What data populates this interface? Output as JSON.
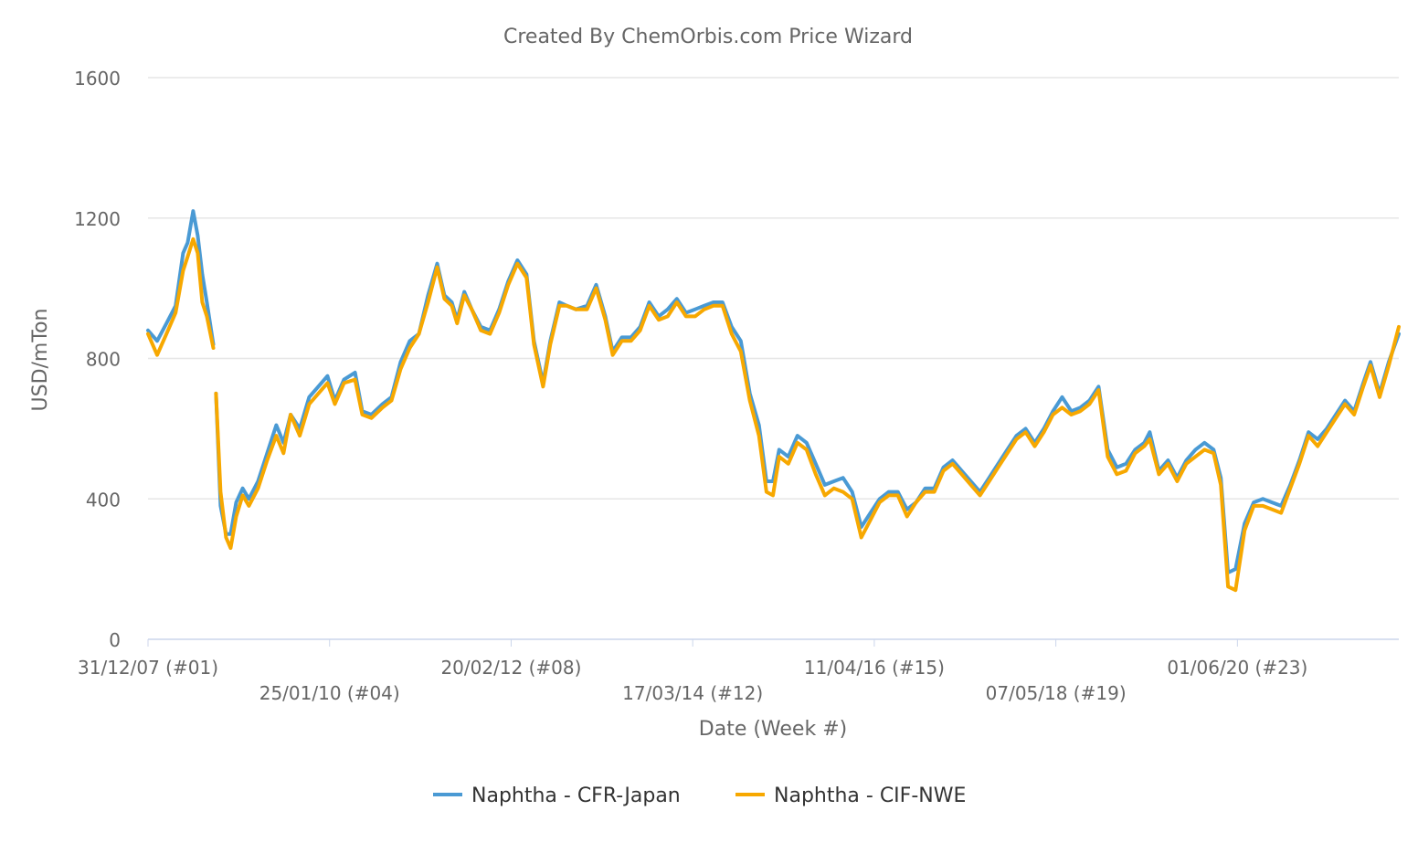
{
  "chart_data": {
    "type": "line",
    "title": "Created By ChemOrbis.com Price Wizard",
    "xlabel": "Date (Week #)",
    "ylabel": "USD/mTon",
    "ylim": [
      0,
      1600
    ],
    "yticks": [
      0,
      400,
      800,
      1200,
      1600
    ],
    "xlim": [
      "2007-12-31",
      "2022-04-04"
    ],
    "xticks": [
      {
        "date": "2007-12-31",
        "label": "31/12/07 (#01)"
      },
      {
        "date": "2010-01-25",
        "label": "25/01/10 (#04)"
      },
      {
        "date": "2012-02-20",
        "label": "20/02/12 (#08)"
      },
      {
        "date": "2014-03-17",
        "label": "17/03/14 (#12)"
      },
      {
        "date": "2016-04-11",
        "label": "11/04/16 (#15)"
      },
      {
        "date": "2018-05-07",
        "label": "07/05/18 (#19)"
      },
      {
        "date": "2020-06-01",
        "label": "01/06/20 (#23)"
      }
    ],
    "grid": true,
    "legend_position": "bottom",
    "x": [
      "2007-12-31",
      "2008-02-07",
      "2008-03-17",
      "2008-04-24",
      "2008-05-25",
      "2008-06-13",
      "2008-07-06",
      "2008-07-25",
      "2008-08-13",
      "2008-09-01",
      "2008-09-28",
      "2008-10-02",
      "2008-10-09",
      "2008-10-28",
      "2008-11-20",
      "2008-12-09",
      "2009-01-01",
      "2009-01-28",
      "2009-02-23",
      "2009-04-02",
      "2009-05-10",
      "2009-06-17",
      "2009-07-17",
      "2009-08-16",
      "2009-09-23",
      "2009-11-01",
      "2009-12-09",
      "2010-01-16",
      "2010-02-16",
      "2010-03-26",
      "2010-05-11",
      "2010-06-10",
      "2010-07-18",
      "2010-09-02",
      "2010-10-10",
      "2010-11-17",
      "2010-12-25",
      "2011-02-01",
      "2011-03-11",
      "2011-04-18",
      "2011-05-18",
      "2011-06-18",
      "2011-07-10",
      "2011-08-09",
      "2011-09-09",
      "2011-10-17",
      "2011-11-24",
      "2012-01-01",
      "2012-02-08",
      "2012-03-17",
      "2012-04-24",
      "2012-05-25",
      "2012-07-02",
      "2012-08-01",
      "2012-09-08",
      "2012-10-09",
      "2012-11-16",
      "2013-01-01",
      "2013-02-08",
      "2013-03-18",
      "2013-04-18",
      "2013-05-26",
      "2013-07-03",
      "2013-08-10",
      "2013-09-17",
      "2013-10-26",
      "2013-12-03",
      "2014-01-10",
      "2014-02-17",
      "2014-03-27",
      "2014-05-04",
      "2014-06-11",
      "2014-07-19",
      "2014-08-26",
      "2014-10-03",
      "2014-11-10",
      "2014-12-18",
      "2015-01-18",
      "2015-02-14",
      "2015-03-12",
      "2015-04-19",
      "2015-05-27",
      "2015-07-04",
      "2015-08-11",
      "2015-09-18",
      "2015-10-26",
      "2015-12-03",
      "2016-01-10",
      "2016-02-17",
      "2016-03-26",
      "2016-05-03",
      "2016-06-10",
      "2016-07-18",
      "2016-08-25",
      "2016-10-02",
      "2016-11-09",
      "2016-12-17",
      "2017-01-24",
      "2017-03-03",
      "2017-04-10",
      "2017-05-18",
      "2017-06-25",
      "2017-08-02",
      "2017-09-09",
      "2017-10-17",
      "2017-11-24",
      "2018-01-01",
      "2018-02-08",
      "2018-03-18",
      "2018-04-25",
      "2018-06-02",
      "2018-07-10",
      "2018-08-17",
      "2018-09-24",
      "2018-11-01",
      "2018-12-09",
      "2019-01-16",
      "2019-02-23",
      "2019-04-02",
      "2019-05-10",
      "2019-06-02",
      "2019-07-10",
      "2019-08-17",
      "2019-09-24",
      "2019-11-01",
      "2019-12-09",
      "2020-01-16",
      "2020-02-23",
      "2020-03-24",
      "2020-04-23",
      "2020-05-24",
      "2020-07-01",
      "2020-08-08",
      "2020-09-15",
      "2020-10-23",
      "2020-11-30",
      "2021-01-07",
      "2021-02-14",
      "2021-03-24",
      "2021-05-01",
      "2021-06-08",
      "2021-07-16",
      "2021-08-23",
      "2021-09-30",
      "2021-11-07",
      "2021-12-07",
      "2022-01-14",
      "2022-02-21",
      "2022-04-04"
    ],
    "series": [
      {
        "name": "Naphtha - CFR-Japan",
        "color": "#4a9ad4",
        "values": [
          880,
          850,
          900,
          950,
          1100,
          1130,
          1220,
          1150,
          1040,
          960,
          840,
          null,
          700,
          380,
          300,
          300,
          390,
          430,
          400,
          450,
          530,
          610,
          560,
          640,
          600,
          690,
          720,
          750,
          680,
          740,
          760,
          650,
          640,
          670,
          690,
          790,
          850,
          870,
          980,
          1070,
          980,
          960,
          910,
          990,
          940,
          890,
          880,
          940,
          1020,
          1080,
          1040,
          850,
          730,
          850,
          960,
          950,
          940,
          950,
          1010,
          920,
          820,
          860,
          860,
          890,
          960,
          920,
          940,
          970,
          930,
          940,
          950,
          960,
          960,
          890,
          850,
          700,
          610,
          450,
          450,
          540,
          520,
          580,
          560,
          500,
          440,
          450,
          460,
          420,
          320,
          360,
          400,
          420,
          420,
          370,
          390,
          430,
          430,
          490,
          510,
          480,
          450,
          420,
          460,
          500,
          540,
          580,
          600,
          560,
          600,
          650,
          690,
          650,
          660,
          680,
          720,
          540,
          490,
          500,
          540,
          560,
          590,
          480,
          510,
          460,
          510,
          540,
          560,
          540,
          460,
          190,
          200,
          330,
          390,
          400,
          390,
          380,
          440,
          510,
          590,
          570,
          600,
          640,
          680,
          650,
          730,
          790,
          700,
          790,
          870
        ]
      },
      {
        "name": "Naphtha - CIF-NWE",
        "color": "#f7a800",
        "values": [
          870,
          810,
          870,
          930,
          1050,
          1090,
          1140,
          1100,
          960,
          920,
          830,
          null,
          700,
          420,
          290,
          260,
          350,
          410,
          380,
          430,
          510,
          580,
          530,
          640,
          580,
          670,
          700,
          730,
          670,
          730,
          740,
          640,
          630,
          660,
          680,
          770,
          830,
          870,
          960,
          1060,
          970,
          950,
          900,
          980,
          940,
          880,
          870,
          930,
          1010,
          1070,
          1030,
          840,
          720,
          840,
          950,
          950,
          940,
          940,
          1000,
          910,
          810,
          850,
          850,
          880,
          950,
          910,
          920,
          960,
          920,
          920,
          940,
          950,
          950,
          870,
          820,
          680,
          580,
          420,
          410,
          520,
          500,
          560,
          540,
          470,
          410,
          430,
          420,
          400,
          290,
          340,
          390,
          410,
          410,
          350,
          390,
          420,
          420,
          480,
          500,
          470,
          440,
          410,
          450,
          490,
          530,
          570,
          590,
          550,
          590,
          640,
          660,
          640,
          650,
          670,
          710,
          520,
          470,
          480,
          530,
          550,
          570,
          470,
          500,
          450,
          500,
          520,
          540,
          530,
          440,
          150,
          140,
          310,
          380,
          380,
          370,
          360,
          430,
          500,
          580,
          550,
          590,
          630,
          670,
          640,
          720,
          780,
          690,
          780,
          890
        ]
      }
    ]
  }
}
